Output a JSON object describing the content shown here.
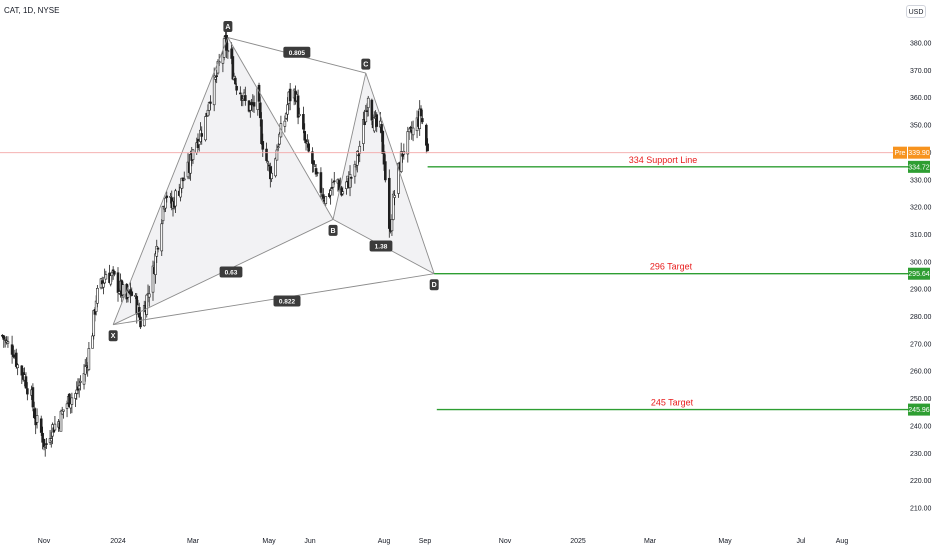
{
  "header": {
    "symbol": "CAT, 1D, NYSE",
    "currency": "USD"
  },
  "colors": {
    "up_candle": "#1f1f1f",
    "down_candle": "#1f1f1f",
    "pattern_line": "#8c8c8c",
    "pattern_fill": "#f2f2f4",
    "support_line": "#2e9e32",
    "level_label": "#e81d1d",
    "current_price_line": "#f3a6a6",
    "pre_badge": "#f7931e"
  },
  "chart_data": {
    "type": "candlestick",
    "y_axis": {
      "ylim": [
        205,
        392
      ],
      "ticks": [
        210,
        220,
        230,
        240,
        250,
        260,
        270,
        280,
        290,
        300,
        310,
        320,
        330,
        340,
        350,
        360,
        370,
        380
      ],
      "tick_labels": [
        "210.00",
        "220.00",
        "230.00",
        "240.00",
        "250.00",
        "260.00",
        "270.00",
        "280.00",
        "290.00",
        "300.00",
        "310.00",
        "320.00",
        "330.00",
        "340.00",
        "350.00",
        "360.00",
        "370.00",
        "380.00"
      ]
    },
    "x_axis": {
      "tick_labels": [
        "Nov",
        "2024",
        "Mar",
        "May",
        "Jun",
        "Aug",
        "Sep",
        "Nov",
        "2025",
        "Mar",
        "May",
        "Jul",
        "Aug"
      ]
    },
    "price_series": [
      [
        "2023-10-02",
        273.0
      ],
      [
        "2023-10-05",
        270.0
      ],
      [
        "2023-10-10",
        268.0
      ],
      [
        "2023-10-13",
        262.0
      ],
      [
        "2023-10-18",
        258.0
      ],
      [
        "2023-10-23",
        250.0
      ],
      [
        "2023-10-26",
        242.0
      ],
      [
        "2023-10-31",
        236.0
      ],
      [
        "2023-11-02",
        232.0
      ],
      [
        "2023-11-06",
        238.0
      ],
      [
        "2023-11-09",
        240.0
      ],
      [
        "2023-11-14",
        242.0
      ],
      [
        "2023-11-17",
        246.0
      ],
      [
        "2023-11-22",
        250.0
      ],
      [
        "2023-11-28",
        252.0
      ],
      [
        "2023-12-01",
        256.0
      ],
      [
        "2023-12-06",
        262.0
      ],
      [
        "2023-12-11",
        275.0
      ],
      [
        "2023-12-14",
        287.0
      ],
      [
        "2023-12-19",
        292.0
      ],
      [
        "2023-12-22",
        296.0
      ],
      [
        "2023-12-28",
        294.0
      ],
      [
        "2024-01-03",
        290.0
      ],
      [
        "2024-01-08",
        286.0
      ],
      [
        "2024-01-11",
        289.0
      ],
      [
        "2024-01-16",
        284.0
      ],
      [
        "2024-01-19",
        278.0
      ],
      [
        "2024-01-24",
        287.0
      ],
      [
        "2024-01-29",
        296.0
      ],
      [
        "2024-02-01",
        305.0
      ],
      [
        "2024-02-05",
        317.0
      ],
      [
        "2024-02-08",
        326.0
      ],
      [
        "2024-02-13",
        320.0
      ],
      [
        "2024-02-16",
        324.0
      ],
      [
        "2024-02-22",
        330.0
      ],
      [
        "2024-02-27",
        334.0
      ],
      [
        "2024-03-01",
        342.0
      ],
      [
        "2024-03-06",
        346.0
      ],
      [
        "2024-03-11",
        352.0
      ],
      [
        "2024-03-14",
        360.0
      ],
      [
        "2024-03-19",
        366.0
      ],
      [
        "2024-03-22",
        372.0
      ],
      [
        "2024-03-27",
        380.0
      ],
      [
        "2024-04-01",
        372.0
      ],
      [
        "2024-04-04",
        366.0
      ],
      [
        "2024-04-09",
        362.0
      ],
      [
        "2024-04-12",
        358.0
      ],
      [
        "2024-04-17",
        356.0
      ],
      [
        "2024-04-22",
        360.0
      ],
      [
        "2024-04-25",
        346.0
      ],
      [
        "2024-04-30",
        335.0
      ],
      [
        "2024-05-03",
        332.0
      ],
      [
        "2024-05-08",
        344.0
      ],
      [
        "2024-05-13",
        352.0
      ],
      [
        "2024-05-16",
        360.0
      ],
      [
        "2024-05-21",
        362.0
      ],
      [
        "2024-05-24",
        352.0
      ],
      [
        "2024-05-29",
        342.0
      ],
      [
        "2024-06-03",
        336.0
      ],
      [
        "2024-06-06",
        330.0
      ],
      [
        "2024-06-11",
        326.0
      ],
      [
        "2024-06-14",
        323.0
      ],
      [
        "2024-06-19",
        327.0
      ],
      [
        "2024-06-24",
        330.0
      ],
      [
        "2024-06-27",
        325.0
      ],
      [
        "2024-07-02",
        329.0
      ],
      [
        "2024-07-08",
        333.0
      ],
      [
        "2024-07-11",
        340.0
      ],
      [
        "2024-07-16",
        352.0
      ],
      [
        "2024-07-19",
        362.0
      ],
      [
        "2024-07-24",
        350.0
      ],
      [
        "2024-07-29",
        348.0
      ],
      [
        "2024-08-01",
        338.0
      ],
      [
        "2024-08-05",
        310.0
      ],
      [
        "2024-08-08",
        322.0
      ],
      [
        "2024-08-13",
        336.0
      ],
      [
        "2024-08-16",
        342.0
      ],
      [
        "2024-08-21",
        346.0
      ],
      [
        "2024-08-26",
        351.0
      ],
      [
        "2024-08-29",
        354.0
      ],
      [
        "2024-09-03",
        339.9
      ]
    ],
    "harmonic_pattern": {
      "points": [
        {
          "label": "X",
          "date": "2023-12-28",
          "price": 277.0
        },
        {
          "label": "A",
          "date": "2024-03-29",
          "price": 382.0
        },
        {
          "label": "B",
          "date": "2024-06-20",
          "price": 315.5
        },
        {
          "label": "C",
          "date": "2024-07-17",
          "price": 369.0
        },
        {
          "label": "D",
          "date": "2024-09-08",
          "price": 295.64
        }
      ],
      "ratios": [
        {
          "label": "0.805",
          "between": [
            "A",
            "C"
          ]
        },
        {
          "label": "0.63",
          "between": [
            "X",
            "B"
          ]
        },
        {
          "label": "1.38",
          "between": [
            "B",
            "D"
          ]
        },
        {
          "label": "0.822",
          "between": [
            "X",
            "D"
          ]
        }
      ]
    },
    "horizontal_levels": [
      {
        "label": "334 Support Line",
        "value": 334.72,
        "price_label": "334.72",
        "start_date": "2024-09-03"
      },
      {
        "label": "296  Target",
        "value": 295.64,
        "price_label": "295.64",
        "start_date": "2024-09-08"
      },
      {
        "label": "245 Target",
        "value": 245.96,
        "price_label": "245.96",
        "start_date": "2024-09-10"
      }
    ],
    "current_price": {
      "value": 339.9,
      "label": "339.90",
      "badge": "Pre"
    }
  }
}
